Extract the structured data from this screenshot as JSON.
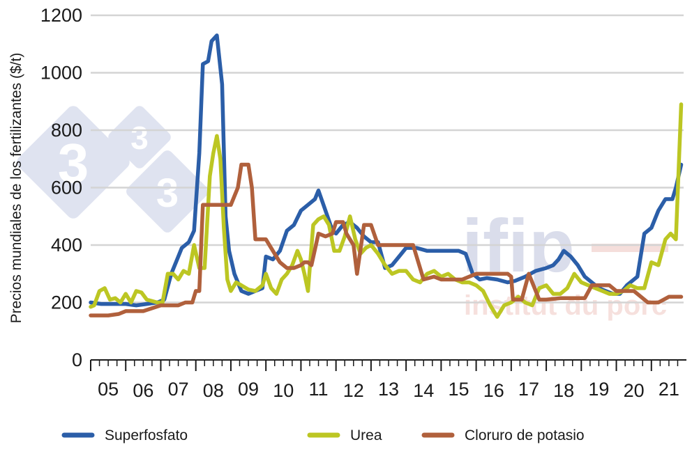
{
  "chart_data": {
    "type": "line",
    "title": "",
    "xlabel": "",
    "ylabel": "Precios mundiales de los fertilizantes ($/t)",
    "x_ticks": [
      "05",
      "06",
      "07",
      "08",
      "09",
      "10",
      "11",
      "12",
      "13",
      "14",
      "15",
      "16",
      "17",
      "18",
      "19",
      "20",
      "21"
    ],
    "xlim": [
      2005.0,
      2021.92
    ],
    "ylim": [
      0,
      1200
    ],
    "y_ticks": [
      0,
      200,
      400,
      600,
      800,
      1000,
      1200
    ],
    "grid": "horizontal",
    "legend_position": "bottom",
    "series": [
      {
        "name": "Superfosfato",
        "color": "#2b5ea8",
        "x": [
          2005.0,
          2005.3,
          2005.6,
          2006.0,
          2006.3,
          2006.6,
          2006.9,
          2007.1,
          2007.3,
          2007.5,
          2007.6,
          2007.8,
          2007.95,
          2008.1,
          2008.2,
          2008.35,
          2008.45,
          2008.6,
          2008.75,
          2008.85,
          2008.95,
          2009.1,
          2009.3,
          2009.5,
          2009.7,
          2009.9,
          2010.0,
          2010.2,
          2010.4,
          2010.6,
          2010.8,
          2011.0,
          2011.2,
          2011.4,
          2011.5,
          2011.7,
          2011.9,
          2012.0,
          2012.2,
          2012.4,
          2012.6,
          2012.8,
          2013.0,
          2013.2,
          2013.4,
          2013.6,
          2013.8,
          2014.0,
          2014.3,
          2014.6,
          2014.9,
          2015.2,
          2015.5,
          2015.7,
          2015.9,
          2016.1,
          2016.3,
          2016.6,
          2016.9,
          2017.1,
          2017.4,
          2017.7,
          2018.0,
          2018.2,
          2018.35,
          2018.5,
          2018.7,
          2018.9,
          2019.1,
          2019.3,
          2019.5,
          2019.7,
          2019.9,
          2020.1,
          2020.3,
          2020.5,
          2020.6,
          2020.8,
          2021.0,
          2021.2,
          2021.4,
          2021.6,
          2021.7,
          2021.85
        ],
        "values": [
          200,
          195,
          195,
          195,
          190,
          195,
          200,
          210,
          300,
          360,
          390,
          410,
          450,
          720,
          1030,
          1040,
          1110,
          1130,
          960,
          500,
          380,
          300,
          240,
          230,
          240,
          250,
          360,
          350,
          380,
          450,
          470,
          520,
          540,
          560,
          590,
          520,
          450,
          440,
          470,
          480,
          460,
          430,
          410,
          410,
          320,
          330,
          360,
          390,
          390,
          380,
          380,
          380,
          380,
          370,
          300,
          280,
          285,
          280,
          270,
          275,
          290,
          310,
          320,
          330,
          350,
          380,
          360,
          330,
          290,
          270,
          250,
          240,
          230,
          230,
          260,
          280,
          290,
          440,
          460,
          520,
          560,
          560,
          600,
          680
        ]
      },
      {
        "name": "Urea",
        "color": "#bcc623",
        "x": [
          2005.0,
          2005.1,
          2005.25,
          2005.4,
          2005.55,
          2005.7,
          2005.85,
          2006.0,
          2006.15,
          2006.3,
          2006.45,
          2006.6,
          2006.75,
          2006.9,
          2007.05,
          2007.2,
          2007.35,
          2007.5,
          2007.65,
          2007.8,
          2007.95,
          2008.1,
          2008.25,
          2008.4,
          2008.5,
          2008.6,
          2008.7,
          2008.8,
          2008.9,
          2009.0,
          2009.15,
          2009.3,
          2009.5,
          2009.7,
          2009.9,
          2010.0,
          2010.15,
          2010.3,
          2010.45,
          2010.6,
          2010.75,
          2010.9,
          2011.0,
          2011.1,
          2011.2,
          2011.35,
          2011.5,
          2011.65,
          2011.8,
          2011.95,
          2012.1,
          2012.25,
          2012.4,
          2012.55,
          2012.7,
          2012.85,
          2013.0,
          2013.2,
          2013.4,
          2013.6,
          2013.8,
          2014.0,
          2014.2,
          2014.4,
          2014.6,
          2014.8,
          2015.0,
          2015.2,
          2015.4,
          2015.6,
          2015.8,
          2016.0,
          2016.2,
          2016.4,
          2016.6,
          2016.8,
          2017.0,
          2017.2,
          2017.4,
          2017.6,
          2017.8,
          2018.0,
          2018.2,
          2018.4,
          2018.6,
          2018.8,
          2019.0,
          2019.2,
          2019.4,
          2019.6,
          2019.8,
          2020.0,
          2020.2,
          2020.4,
          2020.6,
          2020.8,
          2021.0,
          2021.2,
          2021.4,
          2021.55,
          2021.7,
          2021.85
        ],
        "values": [
          185,
          190,
          240,
          250,
          210,
          215,
          200,
          230,
          200,
          240,
          235,
          210,
          205,
          200,
          200,
          300,
          300,
          280,
          310,
          300,
          400,
          320,
          320,
          640,
          720,
          780,
          700,
          460,
          280,
          240,
          270,
          260,
          245,
          240,
          260,
          300,
          250,
          230,
          280,
          300,
          330,
          380,
          350,
          300,
          240,
          470,
          490,
          500,
          470,
          380,
          380,
          430,
          500,
          420,
          370,
          390,
          400,
          370,
          330,
          300,
          310,
          310,
          280,
          270,
          300,
          310,
          290,
          300,
          280,
          270,
          270,
          260,
          240,
          190,
          150,
          190,
          200,
          220,
          200,
          190,
          250,
          260,
          230,
          230,
          250,
          300,
          270,
          260,
          250,
          240,
          230,
          230,
          240,
          260,
          250,
          250,
          340,
          330,
          420,
          440,
          420,
          890
        ]
      },
      {
        "name": "Cloruro de potasio",
        "color": "#b0603c",
        "x": [
          2005.0,
          2005.5,
          2005.8,
          2006.0,
          2006.3,
          2006.5,
          2007.0,
          2007.2,
          2007.5,
          2007.7,
          2007.9,
          2008.0,
          2008.1,
          2008.2,
          2008.3,
          2008.6,
          2008.7,
          2009.0,
          2009.2,
          2009.3,
          2009.5,
          2009.6,
          2009.7,
          2009.9,
          2010.0,
          2010.2,
          2010.4,
          2010.6,
          2010.7,
          2010.8,
          2011.0,
          2011.1,
          2011.2,
          2011.3,
          2011.5,
          2011.7,
          2011.9,
          2012.0,
          2012.2,
          2012.3,
          2012.4,
          2012.5,
          2012.6,
          2012.8,
          2013.0,
          2013.2,
          2013.5,
          2013.8,
          2014.0,
          2014.2,
          2014.5,
          2014.8,
          2015.0,
          2015.3,
          2015.6,
          2016.0,
          2016.1,
          2016.2,
          2016.3,
          2016.6,
          2016.9,
          2017.0,
          2017.05,
          2017.1,
          2017.3,
          2017.5,
          2017.8,
          2018.0,
          2018.4,
          2018.8,
          2019.0,
          2019.1,
          2019.3,
          2019.6,
          2019.8,
          2020.0,
          2020.5,
          2020.9,
          2021.0,
          2021.2,
          2021.5,
          2021.85
        ],
        "values": [
          155,
          155,
          160,
          170,
          170,
          170,
          190,
          190,
          190,
          200,
          200,
          240,
          240,
          540,
          540,
          540,
          540,
          540,
          600,
          680,
          680,
          600,
          420,
          420,
          420,
          380,
          340,
          320,
          320,
          320,
          330,
          340,
          340,
          330,
          440,
          430,
          440,
          480,
          480,
          440,
          420,
          400,
          300,
          470,
          470,
          400,
          400,
          400,
          400,
          400,
          280,
          290,
          280,
          280,
          280,
          300,
          300,
          300,
          300,
          300,
          300,
          290,
          210,
          210,
          210,
          300,
          210,
          210,
          215,
          215,
          215,
          215,
          260,
          260,
          260,
          240,
          240,
          200,
          200,
          200,
          220,
          220
        ]
      }
    ]
  },
  "watermark": {
    "left_digits": [
      "3",
      "3",
      "3"
    ],
    "right_word": "ifip",
    "right_subtitle": "institut du porc"
  }
}
